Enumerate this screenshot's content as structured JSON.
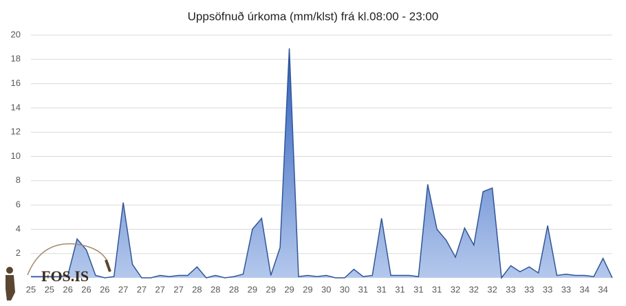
{
  "chart_data": {
    "type": "area",
    "title": "Uppsöfnuð úrkoma (mm/klst) frá kl.08:00 - 23:00",
    "watermark": "FOS.IS",
    "categories": [
      "25",
      null,
      "25",
      null,
      "26",
      null,
      "26",
      null,
      "26",
      null,
      "27",
      null,
      "27",
      null,
      "27",
      null,
      "27",
      null,
      "28",
      null,
      "28",
      null,
      "28",
      null,
      "29",
      null,
      "29",
      null,
      "29",
      null,
      "29",
      null,
      "30",
      null,
      "30",
      null,
      "31",
      null,
      "31",
      null,
      "31",
      null,
      "31",
      null,
      "31",
      null,
      "32",
      null,
      "32",
      null,
      "32",
      null,
      "33",
      null,
      "33",
      null,
      "33",
      null,
      "33",
      null,
      "34",
      null,
      "34",
      null
    ],
    "series": [
      {
        "color": "#2f5597",
        "values": [
          0.1,
          0.1,
          0.1,
          0.1,
          0.2,
          3.2,
          2.3,
          0.2,
          0,
          0.1,
          6.2,
          1.1,
          0,
          0,
          0.2,
          0.1,
          0.2,
          0.2,
          0.9,
          0,
          0.2,
          0,
          0.1,
          0.3,
          4.0,
          4.9,
          0.2,
          2.5,
          18.9,
          0.1,
          0.2,
          0.1,
          0.2,
          0,
          0,
          0.7,
          0.1,
          0.2,
          4.9,
          0.2,
          0.2,
          0.2,
          0.1,
          7.7,
          4.0,
          3.1,
          1.7,
          4.1,
          2.7,
          7.1,
          7.4,
          0,
          1.0,
          0.5,
          0.9,
          0.4,
          4.3,
          0.2,
          0.3,
          0.2,
          0.2,
          0.1,
          1.6,
          0
        ]
      }
    ],
    "ylim": [
      0,
      20
    ],
    "yticks": [
      2,
      4,
      6,
      8,
      10,
      12,
      14,
      16,
      18,
      20
    ],
    "grid": true
  }
}
